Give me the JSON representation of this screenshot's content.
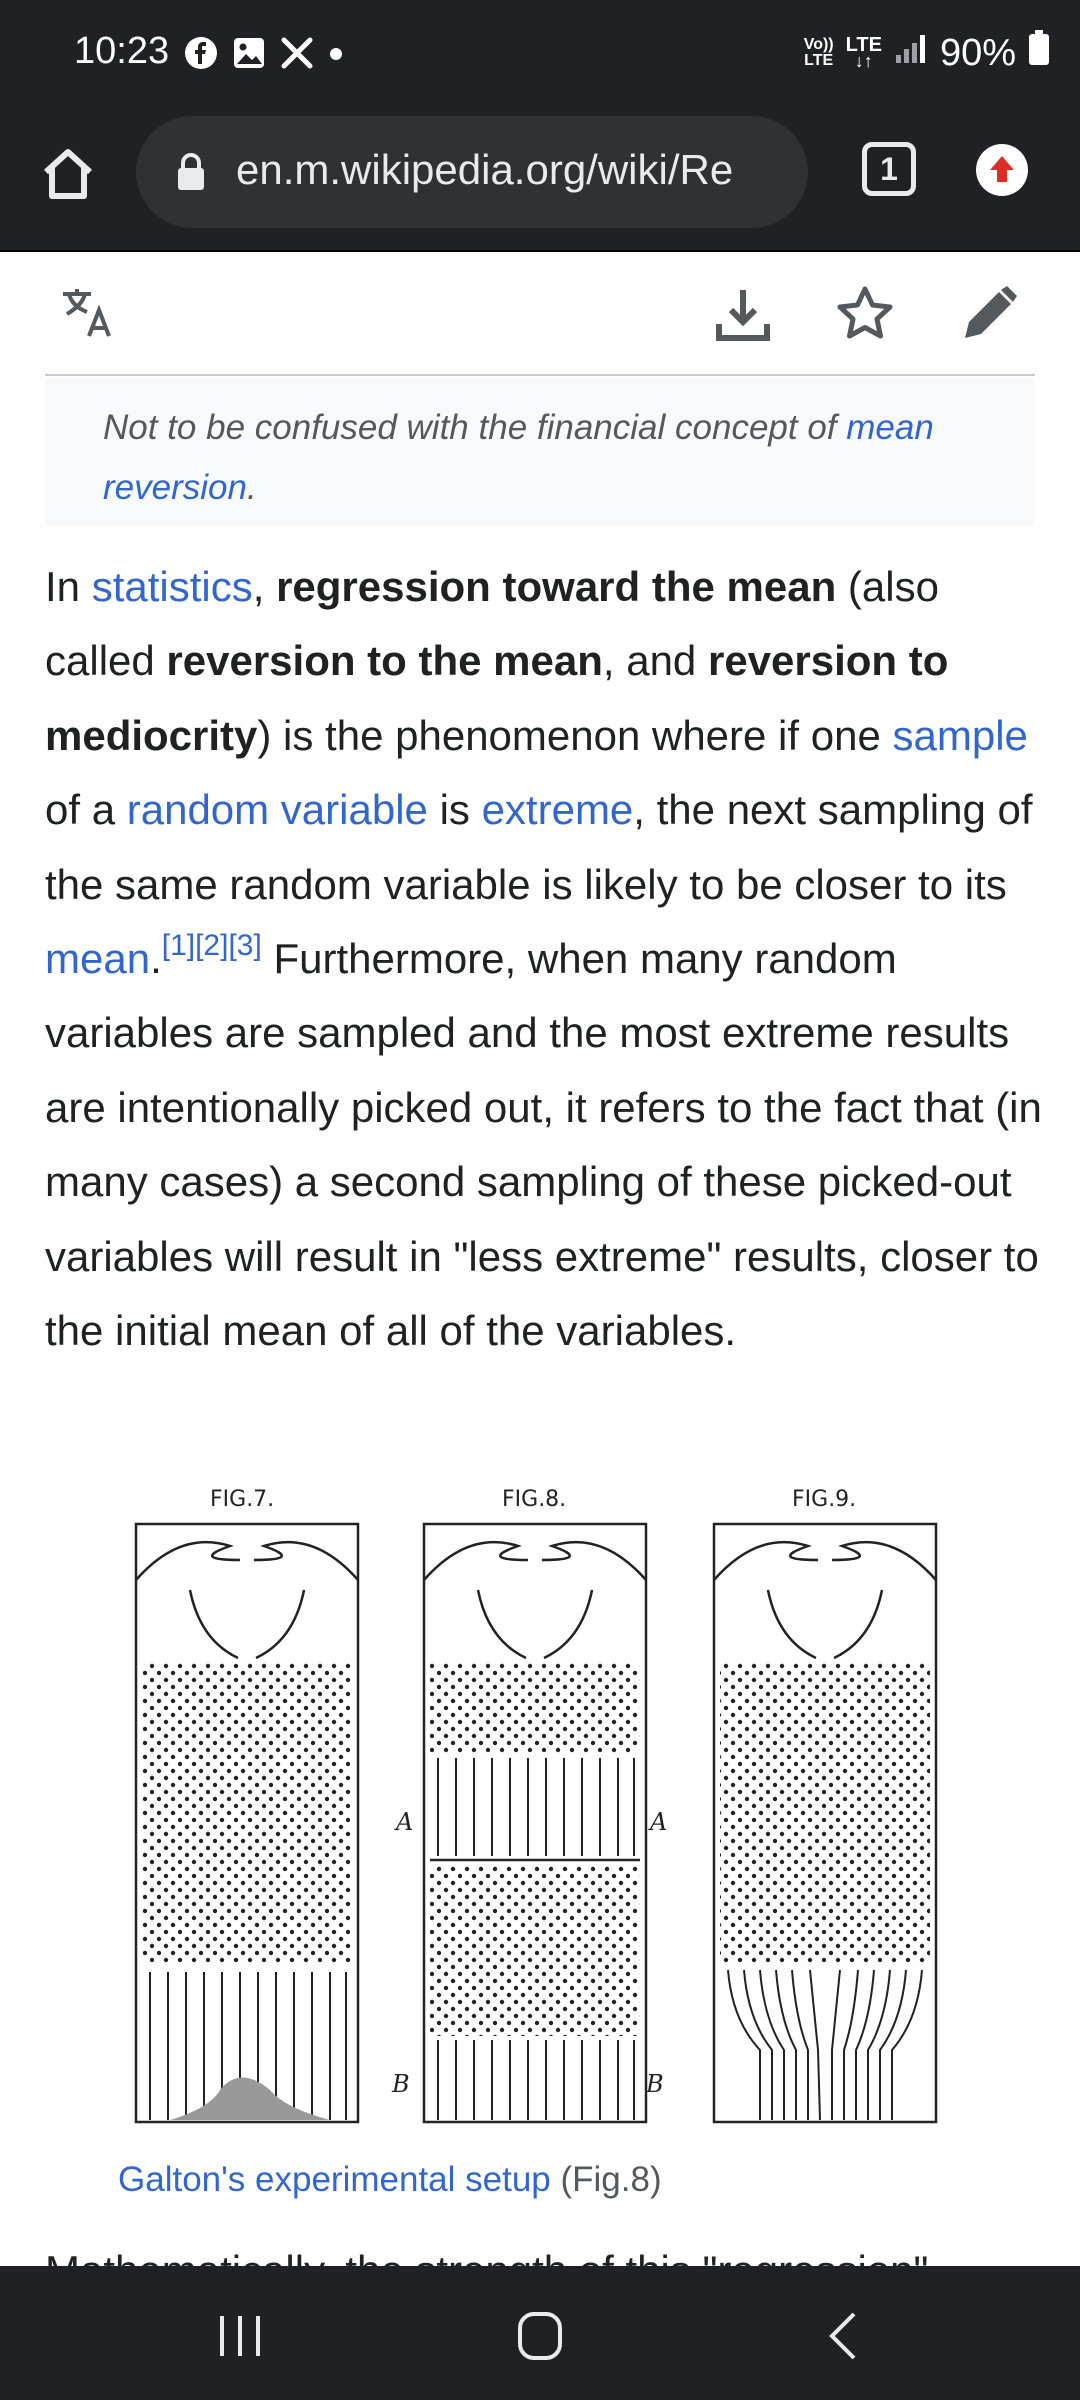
{
  "status_bar": {
    "time": "10:23",
    "network_label_top": "Vo))",
    "network_label_bottom": "LTE",
    "lte_label": "LTE",
    "battery": "90%"
  },
  "browser": {
    "url": "en.m.wikipedia.org/wiki/Re",
    "tab_count": "1"
  },
  "hatnote": {
    "text_before": "Not to be confused with the financial concept of ",
    "link": "mean reversion",
    "text_after": "."
  },
  "paragraph": {
    "p1": "In ",
    "link_statistics": "statistics",
    "p2": ", ",
    "b_regression": "regression toward the mean",
    "p3": " (also called ",
    "b_reversion": "reversion to the mean",
    "p4": ", and ",
    "b_mediocrity": "reversion to mediocrity",
    "p5": ") is the phenomenon where if one ",
    "link_sample": "sample",
    "p6": " of a ",
    "link_random_variable": "random variable",
    "p7": " is ",
    "link_extreme": "extreme",
    "p8": ", the next sampling of the same random variable is likely to be closer to its ",
    "link_mean": "mean",
    "p9": ".",
    "refs": "[1][2][3]",
    "p10": " Furthermore, when many random variables are sampled and the most extreme results are intentionally picked out, it refers to the fact that (in many cases) a second sampling of these picked-out variables will result in \"less extreme\" results, closer to the initial mean of all of the variables."
  },
  "figure": {
    "fig7_title": "FIG.7.",
    "fig8_title": "FIG.8.",
    "fig9_title": "FIG.9.",
    "label_a": "A",
    "label_b": "B",
    "caption_link": "Galton's experimental setup",
    "caption_rest": " (Fig.8)"
  },
  "next_line": "Mathematically, the strength of this \"regression\""
}
